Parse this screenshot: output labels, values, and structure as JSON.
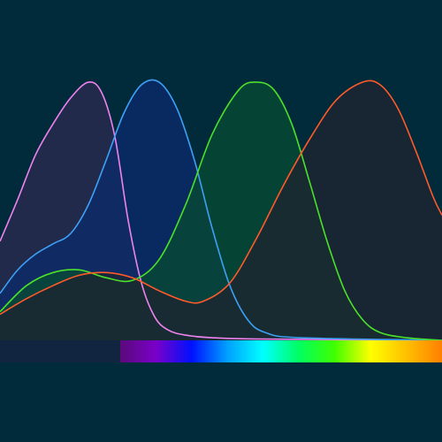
{
  "chart_data": {
    "type": "area",
    "title": "",
    "xlabel": "",
    "ylabel": "",
    "grid": false,
    "legend": "none",
    "xlim": [
      0,
      500
    ],
    "ylim": [
      0,
      1
    ],
    "background": "#012b3b",
    "series": [
      {
        "color": "#ee82ee",
        "fill": "#2a2a4e",
        "x": [
          0,
          20,
          40,
          60,
          80,
          100,
          115,
          130,
          145,
          160,
          175,
          190,
          210,
          240,
          300,
          500
        ],
        "y": [
          0.38,
          0.54,
          0.71,
          0.83,
          0.93,
          0.99,
          0.95,
          0.78,
          0.46,
          0.22,
          0.09,
          0.04,
          0.02,
          0.01,
          0.005,
          0.0
        ]
      },
      {
        "color": "#3da0f5",
        "fill": "#0c2a6a",
        "x": [
          0,
          20,
          40,
          60,
          80,
          100,
          120,
          140,
          160,
          180,
          200,
          220,
          240,
          260,
          280,
          300,
          340,
          500
        ],
        "y": [
          0.18,
          0.27,
          0.33,
          0.37,
          0.41,
          0.52,
          0.69,
          0.87,
          0.98,
          0.99,
          0.89,
          0.69,
          0.43,
          0.21,
          0.08,
          0.03,
          0.01,
          0.0
        ]
      },
      {
        "color": "#4be12a",
        "fill": "#074a32",
        "x": [
          0,
          30,
          60,
          90,
          120,
          150,
          180,
          210,
          240,
          270,
          290,
          310,
          330,
          350,
          370,
          390,
          410,
          430,
          460,
          500
        ],
        "y": [
          0.11,
          0.21,
          0.26,
          0.27,
          0.24,
          0.23,
          0.31,
          0.52,
          0.79,
          0.96,
          0.99,
          0.96,
          0.83,
          0.61,
          0.38,
          0.19,
          0.08,
          0.03,
          0.01,
          0.0
        ]
      },
      {
        "color": "#ff5a2a",
        "fill": "#1e2530",
        "x": [
          0,
          30,
          60,
          90,
          120,
          150,
          180,
          210,
          230,
          260,
          290,
          320,
          350,
          380,
          410,
          430,
          450,
          470,
          490,
          500
        ],
        "y": [
          0.1,
          0.16,
          0.21,
          0.25,
          0.26,
          0.24,
          0.19,
          0.15,
          0.15,
          0.22,
          0.39,
          0.59,
          0.77,
          0.92,
          0.99,
          0.98,
          0.89,
          0.73,
          0.55,
          0.48
        ]
      }
    ],
    "spectrum_bar": {
      "left_color": "#122540",
      "stops": [
        "#5a0a7a",
        "#7a00c8",
        "#0010ff",
        "#00a0ff",
        "#00ffff",
        "#00ff60",
        "#40ff00",
        "#ffff00",
        "#ffc000",
        "#ff8000"
      ]
    }
  }
}
